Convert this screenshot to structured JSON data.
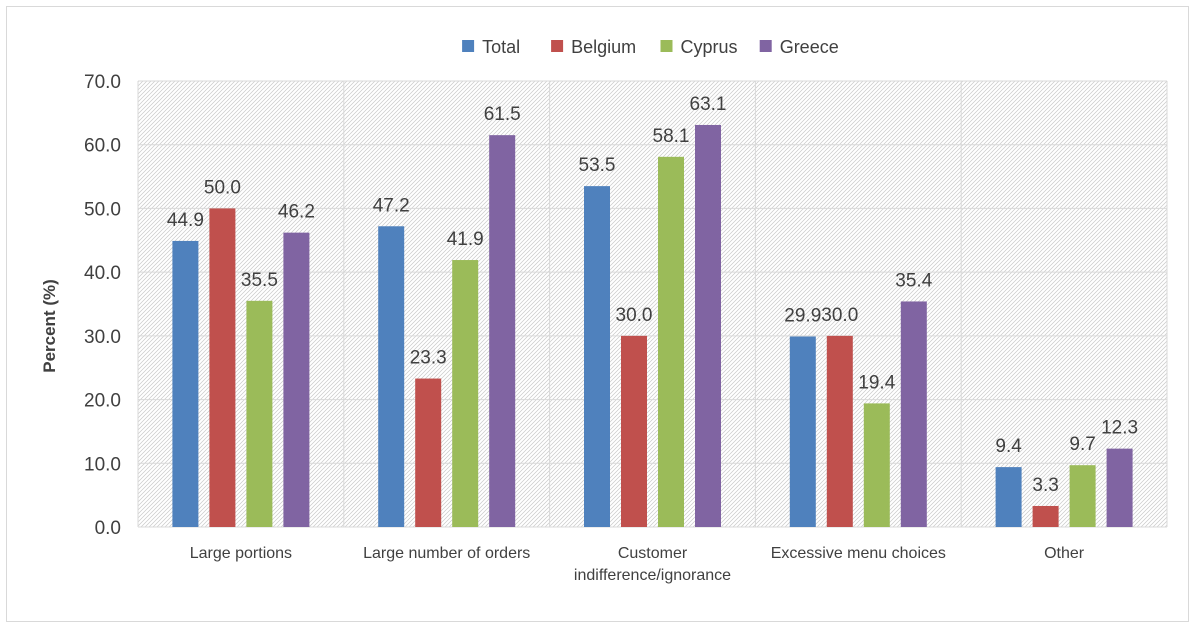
{
  "chart_data": {
    "type": "bar",
    "title": "",
    "xlabel": "",
    "ylabel": "Percent (%)",
    "ylim": [
      0,
      70
    ],
    "yticks": [
      "0.0",
      "10.0",
      "20.0",
      "30.0",
      "40.0",
      "50.0",
      "60.0",
      "70.0"
    ],
    "grid": true,
    "legend_position": "top-center",
    "categories": [
      [
        "Large portions"
      ],
      [
        "Large number of orders"
      ],
      [
        "Customer",
        "indifference/ignorance"
      ],
      [
        "Excessive menu choices"
      ],
      [
        "Other"
      ]
    ],
    "series": [
      {
        "name": "Total",
        "color": "#4f81bd",
        "values": [
          44.9,
          47.2,
          53.5,
          29.9,
          9.4
        ]
      },
      {
        "name": "Belgium",
        "color": "#c0504d",
        "values": [
          50.0,
          23.3,
          30.0,
          30.0,
          3.3
        ]
      },
      {
        "name": "Cyprus",
        "color": "#9bbb59",
        "values": [
          35.5,
          41.9,
          58.1,
          19.4,
          9.7
        ]
      },
      {
        "name": "Greece",
        "color": "#8064a2",
        "values": [
          46.2,
          61.5,
          63.1,
          35.4,
          12.3
        ]
      }
    ]
  }
}
